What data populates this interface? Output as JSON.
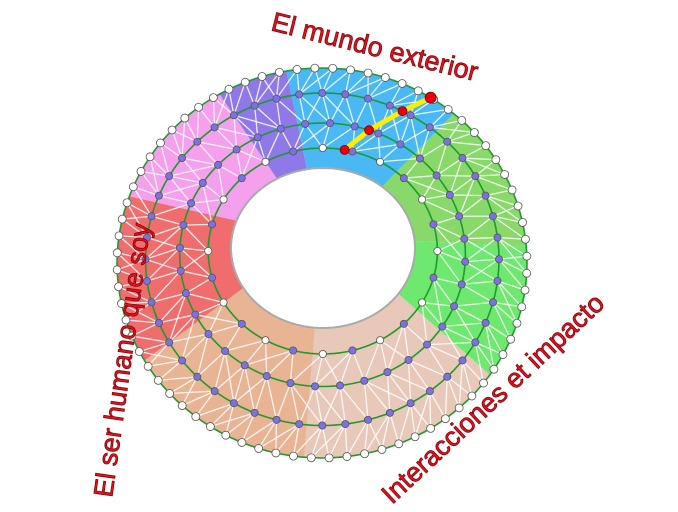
{
  "labels": {
    "top": "El mundo exterior",
    "left": "El ser humano que soy",
    "bottom_right": "Interacciones et impacto"
  },
  "colors": {
    "sectors": [
      "#4ab8f5",
      "#88d96a",
      "#6ee86e",
      "#e8c8b8",
      "#e8b494",
      "#ef6d6d",
      "#f4a0ec",
      "#8f78e8"
    ],
    "ring_line": "#1e9a2e",
    "node_outer": "#ffffff",
    "node_inner": "#7b70e6",
    "highlight_node": "#e8000a",
    "highlight_path": "#ffee00",
    "spokes": "#ffffff",
    "label_text": "#e0141e"
  }
}
